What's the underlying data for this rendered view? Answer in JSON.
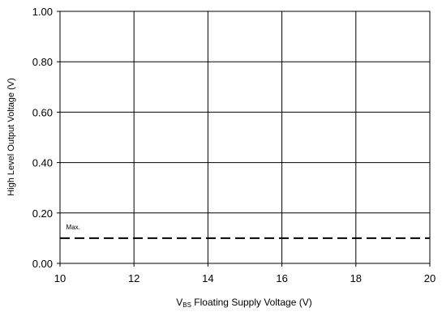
{
  "chart_data": {
    "type": "line",
    "xlabel_main": "V",
    "xlabel_sub": "BS",
    "xlabel_rest": " Floating Supply Voltage (V)",
    "ylabel": "High Level Output Voltage (V)",
    "xlim": [
      10,
      20
    ],
    "ylim": [
      0,
      1.0
    ],
    "x_ticks": [
      10,
      12,
      14,
      16,
      18,
      20
    ],
    "x_tick_labels": [
      "10",
      "12",
      "14",
      "16",
      "18",
      "20"
    ],
    "y_ticks": [
      0,
      0.2,
      0.4,
      0.6,
      0.8,
      1.0
    ],
    "y_tick_labels": [
      "0.00",
      "0.20",
      "0.40",
      "0.60",
      "0.80",
      "1.00"
    ],
    "grid": true,
    "series": [
      {
        "name": "Max.",
        "style": "dashed",
        "color": "#000000",
        "x": [
          10,
          20
        ],
        "y": [
          0.1,
          0.1
        ]
      }
    ],
    "annotations": [
      {
        "text": "Max.",
        "x": 10.1,
        "y": 0.135
      }
    ]
  }
}
